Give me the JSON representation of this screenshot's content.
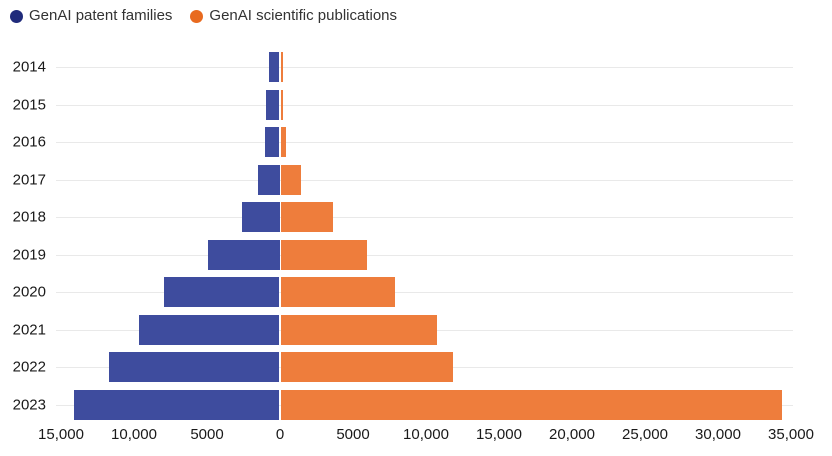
{
  "legend": {
    "items": [
      {
        "id": "patents",
        "label": "GenAI patent families",
        "dot_color": "#202b7b"
      },
      {
        "id": "publications",
        "label": "GenAI scientific publications",
        "dot_color": "#e86a1f"
      }
    ]
  },
  "chart_data": {
    "type": "bar",
    "subtype": "diverging-horizontal",
    "title": "",
    "xlabel": "",
    "ylabel": "",
    "categories": [
      "2014",
      "2015",
      "2016",
      "2017",
      "2018",
      "2019",
      "2020",
      "2021",
      "2022",
      "2023"
    ],
    "series": [
      {
        "name": "GenAI patent families",
        "side": "left",
        "color": "#3e4c9e",
        "values": [
          733,
          900,
          1000,
          1470,
          2600,
          4900,
          7900,
          9600,
          11700,
          14080
        ]
      },
      {
        "name": "GenAI scientific publications",
        "side": "right",
        "color": "#ee7d3c",
        "values": [
          116,
          160,
          360,
          1400,
          3550,
          5900,
          7800,
          10700,
          11800,
          34300
        ]
      }
    ],
    "axis": {
      "min": -15000,
      "max": 35000,
      "tick_step": 5000,
      "tick_values": [
        -15000,
        -10000,
        -5000,
        0,
        5000,
        10000,
        15000,
        20000,
        25000,
        30000,
        35000
      ],
      "tick_labels": [
        "15,000",
        "10,000",
        "5000",
        "0",
        "5000",
        "10,000",
        "15,000",
        "20,000",
        "25,000",
        "30,000",
        "35,000"
      ]
    },
    "grid": "horizontal-per-row",
    "grid_color": "#e9e9e9",
    "legend_position": "top-left"
  }
}
